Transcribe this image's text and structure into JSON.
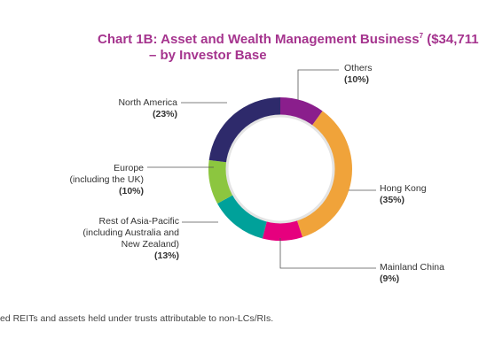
{
  "title": {
    "line1_text": "Chart 1B: Asset and Wealth Management Business",
    "line1_superscript": "7",
    "line1_suffix": " ($34,711",
    "line2": "– by Investor Base"
  },
  "colors": {
    "title": "#a5348e",
    "text": "#333333"
  },
  "footnote": "ed REITs and assets held under trusts attributable to non-LCs/RIs.",
  "chart_data": {
    "type": "pie",
    "donut": true,
    "categories": [
      "Others",
      "Hong Kong",
      "Mainland China",
      "Rest of Asia-Pacific (including Australia and New Zealand)",
      "Europe (including the UK)",
      "North America"
    ],
    "values": [
      10,
      35,
      9,
      13,
      10,
      23
    ],
    "unit": "%",
    "colors": [
      "#8a1e8c",
      "#f0a33a",
      "#e6007e",
      "#00a19a",
      "#8cc63f",
      "#2e2a6b"
    ]
  },
  "labels": {
    "others": {
      "lines": [
        "Others"
      ],
      "pct": "(10%)"
    },
    "hongkong": {
      "lines": [
        "Hong Kong"
      ],
      "pct": "(35%)"
    },
    "mainland": {
      "lines": [
        "Mainland China"
      ],
      "pct": "(9%)"
    },
    "restasia": {
      "lines": [
        "Rest of Asia-Pacific",
        "(including Australia and",
        "New Zealand)"
      ],
      "pct": "(13%)"
    },
    "europe": {
      "lines": [
        "Europe",
        "(including the UK)"
      ],
      "pct": "(10%)"
    },
    "northamerica": {
      "lines": [
        "North America"
      ],
      "pct": "(23%)"
    }
  }
}
